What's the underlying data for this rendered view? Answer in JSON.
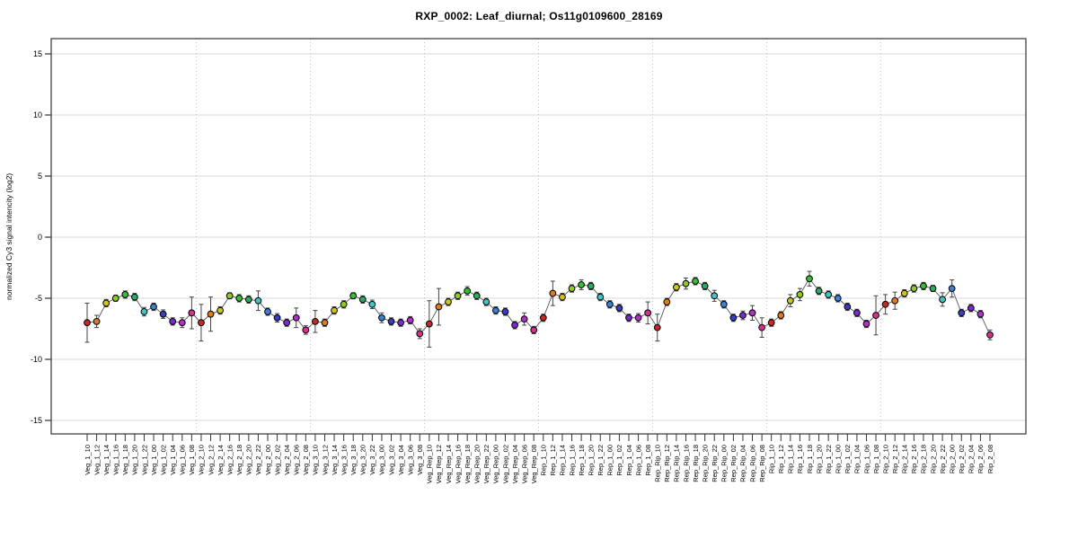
{
  "chart_data": {
    "type": "line",
    "title": "RXP_0002: Leaf_diurnal; Os11g0109600_28169",
    "xlabel": "",
    "ylabel": "normalized Cy3 signal intencity (log2)",
    "ylim": [
      -16.5,
      16.5
    ],
    "y_ticks": [
      -15,
      -10,
      -5,
      0,
      5,
      10,
      15
    ],
    "grid": "horizontal gridlines at every y tick; dotted vertical separators between sample groups; no legend",
    "marker_style": "filled circles with black outline, error bars with caps, connected by dark gray line",
    "groups": [
      "Veg_1",
      "Veg_2",
      "Veg_3",
      "Veg_Rep",
      "Rep_1",
      "Rep_Rip",
      "Rip_1",
      "Rip_2"
    ],
    "times": [
      "10",
      "12",
      "14",
      "16",
      "18",
      "20",
      "22",
      "00",
      "02",
      "04",
      "06",
      "08"
    ],
    "time_colors": [
      "#c62828",
      "#e07b1a",
      "#cfc41f",
      "#8fc922",
      "#35bf35",
      "#2dab62",
      "#40c4c4",
      "#3d7fd2",
      "#3a3dc0",
      "#7a2bd0",
      "#b32fc9",
      "#d9308f"
    ],
    "categories": [
      "Veg_1_10",
      "Veg_1_12",
      "Veg_1_14",
      "Veg_1_16",
      "Veg_1_18",
      "Veg_1_20",
      "Veg_1_22",
      "Veg_1_00",
      "Veg_1_02",
      "Veg_1_04",
      "Veg_1_06",
      "Veg_1_08",
      "Veg_2_10",
      "Veg_2_12",
      "Veg_2_14",
      "Veg_2_16",
      "Veg_2_18",
      "Veg_2_20",
      "Veg_2_22",
      "Veg_2_00",
      "Veg_2_02",
      "Veg_2_04",
      "Veg_2_06",
      "Veg_2_08",
      "Veg_3_10",
      "Veg_3_12",
      "Veg_3_14",
      "Veg_3_16",
      "Veg_3_18",
      "Veg_3_20",
      "Veg_3_22",
      "Veg_3_00",
      "Veg_3_02",
      "Veg_3_04",
      "Veg_3_06",
      "Veg_3_08",
      "Veg_Rep_10",
      "Veg_Rep_12",
      "Veg_Rep_14",
      "Veg_Rep_16",
      "Veg_Rep_18",
      "Veg_Rep_20",
      "Veg_Rep_22",
      "Veg_Rep_00",
      "Veg_Rep_02",
      "Veg_Rep_04",
      "Veg_Rep_06",
      "Veg_Rep_08",
      "Rep_1_10",
      "Rep_1_12",
      "Rep_1_14",
      "Rep_1_16",
      "Rep_1_18",
      "Rep_1_20",
      "Rep_1_22",
      "Rep_1_00",
      "Rep_1_02",
      "Rep_1_04",
      "Rep_1_06",
      "Rep_1_08",
      "Rep_Rip_10",
      "Rep_Rip_12",
      "Rep_Rip_14",
      "Rep_Rip_16",
      "Rep_Rip_18",
      "Rep_Rip_20",
      "Rep_Rip_22",
      "Rep_Rip_00",
      "Rep_Rip_02",
      "Rep_Rip_04",
      "Rep_Rip_06",
      "Rep_Rip_08",
      "Rip_1_10",
      "Rip_1_12",
      "Rip_1_14",
      "Rip_1_16",
      "Rip_1_18",
      "Rip_1_20",
      "Rip_1_22",
      "Rip_1_00",
      "Rip_1_02",
      "Rip_1_04",
      "Rip_1_06",
      "Rip_1_08",
      "Rip_2_10",
      "Rip_2_12",
      "Rip_2_14",
      "Rip_2_16",
      "Rip_2_18",
      "Rip_2_20",
      "Rip_2_22",
      "Rip_2_00",
      "Rip_2_02",
      "Rip_2_04",
      "Rip_2_06",
      "Rip_2_08"
    ],
    "values": [
      -7.0,
      -6.9,
      -5.4,
      -5.0,
      -4.7,
      -4.9,
      -6.1,
      -5.7,
      -6.3,
      -6.9,
      -7.0,
      -6.2,
      -7.0,
      -6.3,
      -6.0,
      -4.8,
      -5.0,
      -5.1,
      -5.2,
      -6.1,
      -6.6,
      -7.0,
      -6.6,
      -7.6,
      -6.9,
      -7.0,
      -6.0,
      -5.5,
      -4.8,
      -5.1,
      -5.5,
      -6.6,
      -6.9,
      -7.0,
      -6.8,
      -7.9,
      -7.1,
      -5.7,
      -5.3,
      -4.8,
      -4.4,
      -4.8,
      -5.3,
      -6.0,
      -6.1,
      -7.2,
      -6.7,
      -7.6,
      -6.6,
      -4.6,
      -4.9,
      -4.2,
      -3.9,
      -4.0,
      -4.9,
      -5.5,
      -5.8,
      -6.6,
      -6.6,
      -6.2,
      -7.4,
      -5.3,
      -4.1,
      -3.8,
      -3.6,
      -4.0,
      -4.8,
      -5.5,
      -6.6,
      -6.4,
      -6.2,
      -7.4,
      -7.0,
      -6.4,
      -5.2,
      -4.7,
      -3.4,
      -4.4,
      -4.7,
      -5.0,
      -5.7,
      -6.2,
      -7.1,
      -6.4,
      -5.5,
      -5.2,
      -4.6,
      -4.2,
      -4.0,
      -4.2,
      -5.1,
      -4.2,
      -6.2,
      -5.8,
      -6.3,
      -8.0
    ],
    "errors": [
      1.6,
      0.5,
      0.3,
      0.25,
      0.3,
      0.3,
      0.35,
      0.3,
      0.35,
      0.3,
      0.4,
      1.3,
      1.5,
      1.4,
      0.3,
      0.25,
      0.3,
      0.3,
      0.8,
      0.3,
      0.35,
      0.3,
      0.8,
      0.35,
      0.9,
      0.3,
      0.3,
      0.3,
      0.25,
      0.3,
      0.35,
      0.4,
      0.3,
      0.3,
      0.3,
      0.4,
      1.9,
      1.5,
      0.3,
      0.3,
      0.35,
      0.3,
      0.3,
      0.3,
      0.3,
      0.3,
      0.5,
      0.3,
      0.3,
      1.0,
      0.3,
      0.3,
      0.4,
      0.3,
      0.3,
      0.3,
      0.3,
      0.3,
      0.35,
      0.9,
      1.1,
      0.3,
      0.3,
      0.45,
      0.3,
      0.3,
      0.45,
      0.3,
      0.3,
      0.35,
      0.6,
      0.8,
      0.3,
      0.3,
      0.5,
      0.5,
      0.6,
      0.3,
      0.3,
      0.3,
      0.3,
      0.3,
      0.3,
      1.6,
      0.8,
      0.7,
      0.3,
      0.3,
      0.3,
      0.25,
      0.55,
      0.7,
      0.3,
      0.3,
      0.3,
      0.4
    ]
  }
}
